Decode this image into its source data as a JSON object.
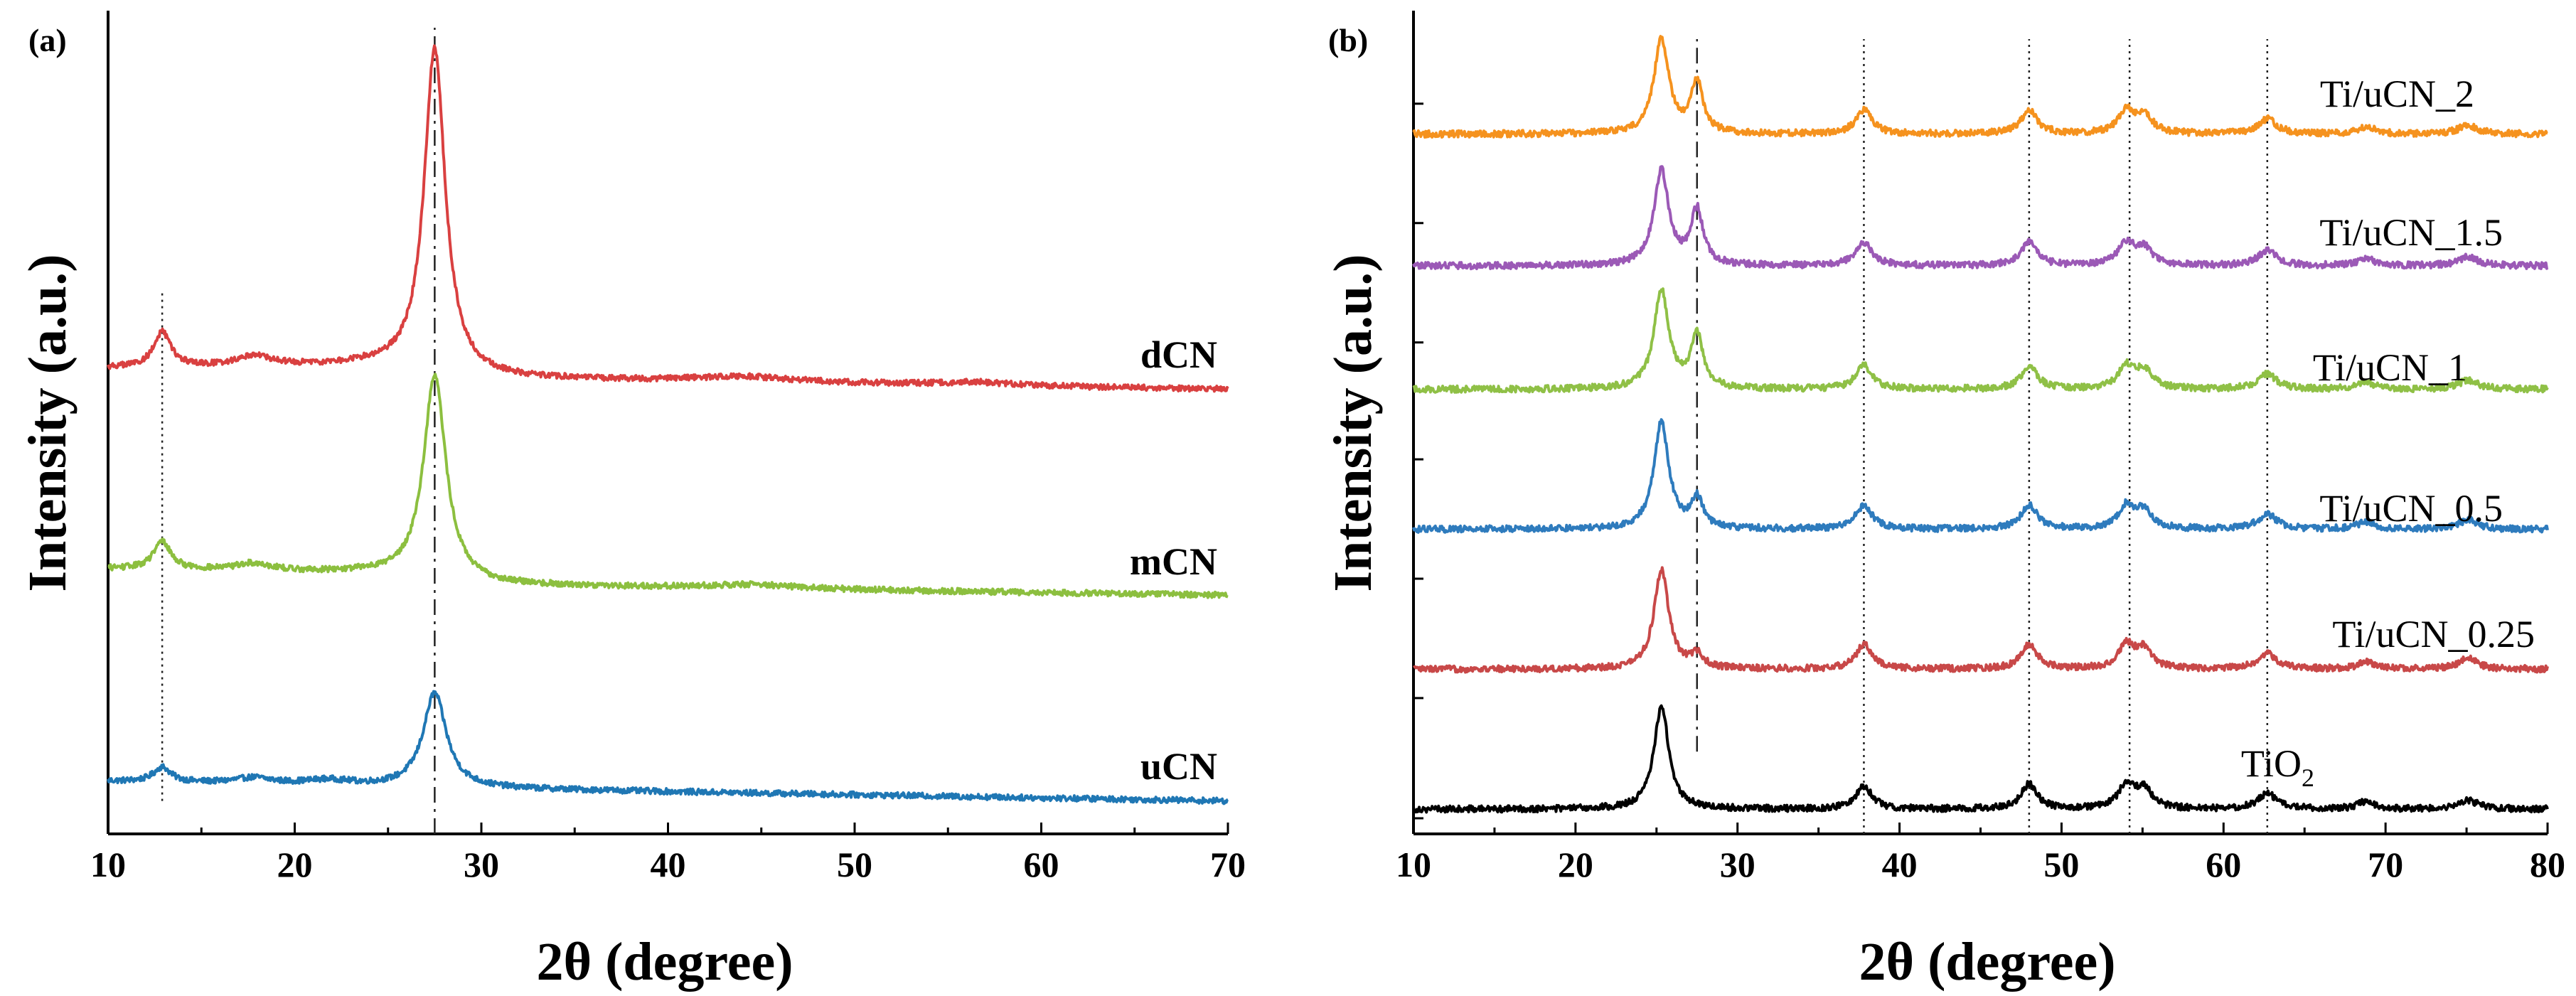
{
  "chart_data": [
    {
      "type": "line",
      "panel_label": "(a)",
      "xlabel": "2θ (degree)",
      "ylabel": "Intensity (a.u.)",
      "xlim": [
        10,
        70
      ],
      "ylim": [
        0,
        100
      ],
      "xticks": [
        10,
        20,
        30,
        40,
        50,
        60,
        70
      ],
      "xtick_labels": [
        "10",
        "20",
        "30",
        "40",
        "50",
        "60",
        "70"
      ],
      "ref_lines": [
        {
          "x": 12.9,
          "style": "dotted"
        },
        {
          "x": 27.5,
          "style": "dashdot"
        }
      ],
      "series": [
        {
          "name": "uCN",
          "label": "uCN",
          "color": "#1f77b4",
          "offset": 4,
          "noise": 0.35,
          "baseline": [
            [
              10,
              2.4
            ],
            [
              30,
              1.5
            ],
            [
              70,
              0
            ]
          ],
          "peaks": [
            [
              12.9,
              1.8,
              0.55
            ],
            [
              17.8,
              0.7,
              1.2
            ],
            [
              21.8,
              0.6,
              1.5
            ],
            [
              27.5,
              11.5,
              0.75
            ]
          ]
        },
        {
          "name": "mCN",
          "label": "mCN",
          "color": "#8cbf3f",
          "offset": 29,
          "noise": 0.35,
          "baseline": [
            [
              10,
              3.2
            ],
            [
              24,
              2.6
            ],
            [
              30,
              1.2
            ],
            [
              70,
              0
            ]
          ],
          "peaks": [
            [
              12.9,
              3.4,
              0.55
            ],
            [
              17.8,
              0.9,
              1.2
            ],
            [
              27.5,
              25.0,
              0.72
            ],
            [
              44.5,
              0.5,
              3.0
            ]
          ]
        },
        {
          "name": "dCN",
          "label": "dCN",
          "color": "#d94040",
          "offset": 54,
          "noise": 0.35,
          "baseline": [
            [
              10,
              2.6
            ],
            [
              24,
              2.8
            ],
            [
              30,
              1.3
            ],
            [
              70,
              0
            ]
          ],
          "peaks": [
            [
              12.9,
              4.2,
              0.55
            ],
            [
              17.8,
              1.3,
              1.1
            ],
            [
              27.5,
              39.5,
              0.68
            ],
            [
              44.0,
              0.7,
              3.0
            ],
            [
              56.5,
              0.4,
              2.5
            ]
          ]
        }
      ]
    },
    {
      "type": "line",
      "panel_label": "(b)",
      "xlabel": "2θ (degree)",
      "ylabel": "Intensity (a.u.)",
      "xlim": [
        10,
        80
      ],
      "ylim": [
        0,
        100
      ],
      "xticks": [
        10,
        20,
        30,
        40,
        50,
        60,
        70,
        80
      ],
      "xtick_labels": [
        "10",
        "20",
        "30",
        "40",
        "50",
        "60",
        "70",
        "80"
      ],
      "ref_lines": [
        {
          "x": 27.5,
          "style": "dashdot",
          "y_from": 10
        },
        {
          "x": 37.8,
          "style": "dotted"
        },
        {
          "x": 48.0,
          "style": "dotted"
        },
        {
          "x": 54.2,
          "style": "dotted"
        },
        {
          "x": 62.7,
          "style": "dotted"
        }
      ],
      "series": [
        {
          "name": "TiO2",
          "label": "TiO",
          "label_sub": "2",
          "color": "#000000",
          "offset": 3,
          "noise": 0.4,
          "baseline": [
            [
              10,
              0
            ],
            [
              80,
              0
            ]
          ],
          "peaks": [
            [
              25.3,
              12.5,
              0.55
            ],
            [
              37.8,
              2.8,
              0.6
            ],
            [
              48.0,
              3.0,
              0.6
            ],
            [
              54.0,
              2.8,
              0.6
            ],
            [
              55.1,
              2.3,
              0.6
            ],
            [
              62.7,
              1.9,
              0.7
            ],
            [
              68.8,
              0.9,
              0.6
            ],
            [
              75.1,
              1.1,
              0.7
            ]
          ]
        },
        {
          "name": "Ti/uCN_0.25",
          "label": "Ti/uCN_0.25",
          "color": "#c84848",
          "offset": 20,
          "noise": 0.4,
          "baseline": [
            [
              10,
              0
            ],
            [
              80,
              0
            ]
          ],
          "peaks": [
            [
              25.3,
              12.0,
              0.55
            ],
            [
              27.5,
              1.6,
              0.45
            ],
            [
              37.8,
              3.0,
              0.6
            ],
            [
              48.0,
              3.0,
              0.6
            ],
            [
              54.0,
              2.8,
              0.6
            ],
            [
              55.1,
              2.3,
              0.6
            ],
            [
              62.7,
              1.9,
              0.7
            ],
            [
              68.8,
              0.9,
              0.6
            ],
            [
              75.1,
              1.3,
              0.7
            ]
          ]
        },
        {
          "name": "Ti/uCN_0.5",
          "label": "Ti/uCN_0.5",
          "color": "#2e7bbd",
          "offset": 37,
          "noise": 0.4,
          "baseline": [
            [
              10,
              0
            ],
            [
              80,
              0
            ]
          ],
          "peaks": [
            [
              25.3,
              13.0,
              0.55
            ],
            [
              27.5,
              3.6,
              0.45
            ],
            [
              37.8,
              2.9,
              0.6
            ],
            [
              48.0,
              2.9,
              0.6
            ],
            [
              54.0,
              2.7,
              0.6
            ],
            [
              55.1,
              2.2,
              0.6
            ],
            [
              62.7,
              1.8,
              0.7
            ],
            [
              68.8,
              0.9,
              0.6
            ],
            [
              75.1,
              1.1,
              0.7
            ]
          ]
        },
        {
          "name": "Ti/uCN_1",
          "label": "Ti/uCN_1",
          "color": "#8fc046",
          "offset": 54,
          "noise": 0.4,
          "baseline": [
            [
              10,
              0
            ],
            [
              80,
              0
            ]
          ],
          "peaks": [
            [
              25.3,
              12.0,
              0.55
            ],
            [
              27.5,
              6.6,
              0.45
            ],
            [
              37.8,
              2.9,
              0.6
            ],
            [
              48.0,
              2.8,
              0.6
            ],
            [
              54.0,
              2.7,
              0.6
            ],
            [
              55.1,
              2.2,
              0.6
            ],
            [
              62.7,
              1.8,
              0.7
            ],
            [
              68.8,
              0.9,
              0.6
            ],
            [
              75.1,
              1.1,
              0.7
            ]
          ]
        },
        {
          "name": "Ti/uCN_1.5",
          "label": "Ti/uCN_1.5",
          "color": "#9b59b6",
          "offset": 69,
          "noise": 0.4,
          "baseline": [
            [
              10,
              0
            ],
            [
              80,
              0
            ]
          ],
          "peaks": [
            [
              25.3,
              11.5,
              0.55
            ],
            [
              27.5,
              6.7,
              0.45
            ],
            [
              37.8,
              2.8,
              0.6
            ],
            [
              48.0,
              2.8,
              0.6
            ],
            [
              54.0,
              2.6,
              0.6
            ],
            [
              55.1,
              2.1,
              0.6
            ],
            [
              62.7,
              1.8,
              0.7
            ],
            [
              68.8,
              0.9,
              0.6
            ],
            [
              75.1,
              1.1,
              0.7
            ]
          ]
        },
        {
          "name": "Ti/uCN_2",
          "label": "Ti/uCN_2",
          "color": "#f5921e",
          "offset": 85,
          "noise": 0.4,
          "baseline": [
            [
              10,
              0
            ],
            [
              80,
              0
            ]
          ],
          "peaks": [
            [
              25.3,
              11.5,
              0.55
            ],
            [
              27.5,
              6.2,
              0.45
            ],
            [
              37.8,
              2.9,
              0.6
            ],
            [
              48.0,
              2.9,
              0.6
            ],
            [
              54.0,
              2.7,
              0.6
            ],
            [
              55.1,
              2.2,
              0.6
            ],
            [
              62.7,
              1.8,
              0.7
            ],
            [
              68.8,
              0.9,
              0.6
            ],
            [
              75.1,
              1.1,
              0.7
            ]
          ]
        }
      ]
    }
  ]
}
